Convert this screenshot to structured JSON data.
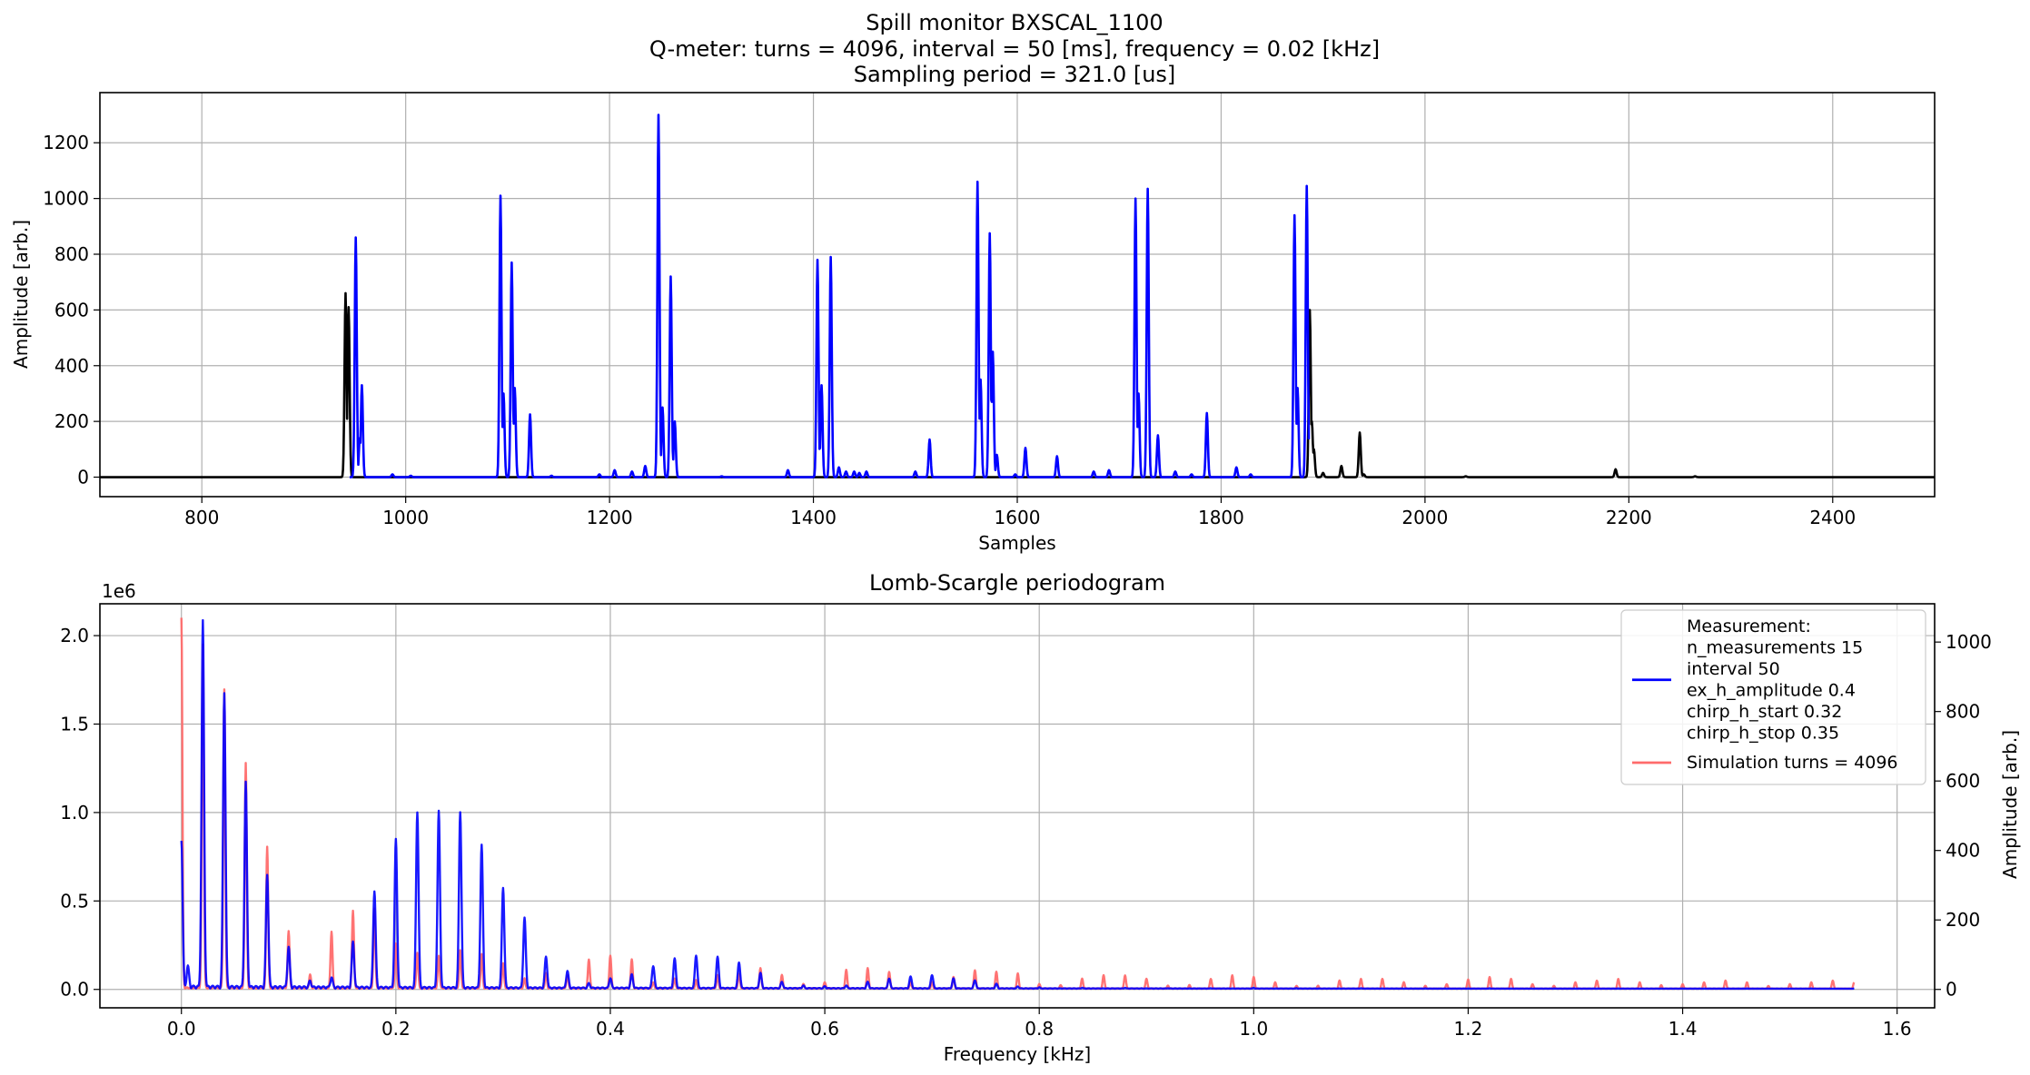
{
  "figure": {
    "title_lines": [
      "Spill monitor BXSCAL_1100",
      "Q-meter: turns = 4096, interval = 50 [ms], frequency = 0.02 [kHz]",
      "Sampling period = 321.0 [us]"
    ]
  },
  "chart_data": [
    {
      "type": "line",
      "title": "",
      "xlabel": "Samples",
      "ylabel": "Amplitude [arb.]",
      "xlim": [
        700,
        2500
      ],
      "ylim": [
        -70,
        1380
      ],
      "xticks": [
        800,
        1000,
        1200,
        1400,
        1600,
        1800,
        2000,
        2200,
        2400
      ],
      "yticks": [
        0,
        200,
        400,
        600,
        800,
        1000,
        1200
      ],
      "grid": true,
      "colors": {
        "measurement": "#0000ff",
        "background": "#000000"
      },
      "series": [
        {
          "key": "background",
          "color": "#000000",
          "baseline": 0,
          "x_range": [
            700,
            2500
          ],
          "peaks": [
            [
              941,
              660
            ],
            [
              944,
              610
            ],
            [
              1887,
              600
            ],
            [
              1889,
              200
            ],
            [
              1891,
              100
            ],
            [
              1900,
              15
            ],
            [
              1918,
              40
            ],
            [
              1936,
              160
            ],
            [
              1940,
              10
            ],
            [
              2040,
              3
            ],
            [
              2187,
              28
            ],
            [
              2265,
              3
            ]
          ]
        },
        {
          "key": "measurement",
          "color": "#0000ff",
          "baseline": 0,
          "x_range": [
            945,
            1886
          ],
          "peaks": [
            [
              951,
              860
            ],
            [
              955,
              140
            ],
            [
              957,
              330
            ],
            [
              987,
              10
            ],
            [
              1005,
              5
            ],
            [
              1093,
              1010
            ],
            [
              1096,
              300
            ],
            [
              1104,
              770
            ],
            [
              1107,
              320
            ],
            [
              1122,
              225
            ],
            [
              1143,
              5
            ],
            [
              1190,
              10
            ],
            [
              1205,
              25
            ],
            [
              1222,
              20
            ],
            [
              1235,
              40
            ],
            [
              1248,
              1300
            ],
            [
              1252,
              250
            ],
            [
              1260,
              720
            ],
            [
              1264,
              200
            ],
            [
              1310,
              3
            ],
            [
              1375,
              25
            ],
            [
              1404,
              780
            ],
            [
              1408,
              330
            ],
            [
              1417,
              790
            ],
            [
              1425,
              35
            ],
            [
              1432,
              20
            ],
            [
              1440,
              20
            ],
            [
              1445,
              15
            ],
            [
              1452,
              20
            ],
            [
              1500,
              20
            ],
            [
              1514,
              135
            ],
            [
              1561,
              1060
            ],
            [
              1564,
              350
            ],
            [
              1573,
              875
            ],
            [
              1576,
              450
            ],
            [
              1580,
              80
            ],
            [
              1598,
              10
            ],
            [
              1608,
              105
            ],
            [
              1639,
              75
            ],
            [
              1675,
              20
            ],
            [
              1690,
              25
            ],
            [
              1716,
              1000
            ],
            [
              1719,
              300
            ],
            [
              1728,
              1035
            ],
            [
              1738,
              150
            ],
            [
              1755,
              20
            ],
            [
              1771,
              10
            ],
            [
              1786,
              230
            ],
            [
              1815,
              35
            ],
            [
              1829,
              10
            ],
            [
              1872,
              940
            ],
            [
              1875,
              320
            ],
            [
              1884,
              1045
            ]
          ]
        }
      ]
    },
    {
      "type": "line",
      "title": "Lomb-Scargle periodogram",
      "xlabel": "Frequency [kHz]",
      "ylabel": "",
      "y2label": "Amplitude [arb.]",
      "y_offset_text": "1e6",
      "xlim": [
        -0.076,
        1.635
      ],
      "ylim": [
        -104000.0,
        2180000.0
      ],
      "y2lim": [
        -52.96,
        1110.2
      ],
      "xticks": [
        0.0,
        0.2,
        0.4,
        0.6,
        0.8,
        1.0,
        1.2,
        1.4,
        1.6
      ],
      "xtick_labels": [
        "0.0",
        "0.2",
        "0.4",
        "0.6",
        "0.8",
        "1.0",
        "1.2",
        "1.4",
        "1.6"
      ],
      "yticks": [
        0,
        500000.0,
        1000000.0,
        1500000.0,
        2000000.0
      ],
      "ytick_labels": [
        "0.0",
        "0.5",
        "1.0",
        "1.5",
        "2.0"
      ],
      "y2ticks": [
        0,
        200,
        400,
        600,
        800,
        1000
      ],
      "grid": true,
      "legend_position": "top-right",
      "legend": [
        {
          "color": "#0000ff",
          "lines": [
            "Measurement:",
            "n_measurements 15",
            "interval 50",
            "ex_h_amplitude 0.4",
            "chirp_h_start 0.32",
            "chirp_h_stop 0.35"
          ]
        },
        {
          "color": "#ff6b6b",
          "lines": [
            "Simulation turns = 4096"
          ]
        }
      ],
      "series": [
        {
          "key": "simulation",
          "name": "Simulation turns = 4096",
          "axis": "right",
          "color": "#ff6b6b",
          "x_range": [
            0,
            1.56
          ],
          "peaks": [
            [
              0.0,
              1070
            ],
            [
              0.02,
              990
            ],
            [
              0.04,
              860
            ],
            [
              0.06,
              650
            ],
            [
              0.08,
              410
            ],
            [
              0.1,
              165
            ],
            [
              0.12,
              40
            ],
            [
              0.14,
              165
            ],
            [
              0.16,
              225
            ],
            [
              0.18,
              230
            ],
            [
              0.2,
              130
            ],
            [
              0.22,
              105
            ],
            [
              0.24,
              95
            ],
            [
              0.26,
              110
            ],
            [
              0.28,
              100
            ],
            [
              0.3,
              75
            ],
            [
              0.32,
              30
            ],
            [
              0.34,
              45
            ],
            [
              0.36,
              40
            ],
            [
              0.38,
              85
            ],
            [
              0.4,
              95
            ],
            [
              0.42,
              85
            ],
            [
              0.44,
              20
            ],
            [
              0.46,
              30
            ],
            [
              0.48,
              25
            ],
            [
              0.5,
              40
            ],
            [
              0.52,
              45
            ],
            [
              0.54,
              60
            ],
            [
              0.56,
              40
            ],
            [
              0.58,
              15
            ],
            [
              0.6,
              20
            ],
            [
              0.62,
              55
            ],
            [
              0.64,
              60
            ],
            [
              0.66,
              50
            ],
            [
              0.68,
              20
            ],
            [
              0.7,
              20
            ],
            [
              0.72,
              35
            ],
            [
              0.74,
              55
            ],
            [
              0.76,
              50
            ],
            [
              0.78,
              45
            ],
            [
              0.8,
              15
            ],
            [
              0.82,
              12
            ],
            [
              0.84,
              30
            ],
            [
              0.86,
              40
            ],
            [
              0.88,
              40
            ],
            [
              0.9,
              30
            ],
            [
              0.92,
              10
            ],
            [
              0.94,
              12
            ],
            [
              0.96,
              30
            ],
            [
              0.98,
              40
            ],
            [
              1.0,
              35
            ],
            [
              1.02,
              20
            ],
            [
              1.04,
              10
            ],
            [
              1.06,
              10
            ],
            [
              1.08,
              25
            ],
            [
              1.1,
              30
            ],
            [
              1.12,
              30
            ],
            [
              1.14,
              20
            ],
            [
              1.16,
              10
            ],
            [
              1.18,
              15
            ],
            [
              1.2,
              28
            ],
            [
              1.22,
              35
            ],
            [
              1.24,
              30
            ],
            [
              1.26,
              15
            ],
            [
              1.28,
              10
            ],
            [
              1.3,
              20
            ],
            [
              1.32,
              25
            ],
            [
              1.34,
              30
            ],
            [
              1.36,
              20
            ],
            [
              1.38,
              12
            ],
            [
              1.4,
              15
            ],
            [
              1.42,
              20
            ],
            [
              1.44,
              25
            ],
            [
              1.46,
              20
            ],
            [
              1.48,
              10
            ],
            [
              1.5,
              15
            ],
            [
              1.52,
              20
            ],
            [
              1.54,
              25
            ],
            [
              1.56,
              20
            ]
          ]
        },
        {
          "key": "measurement",
          "name": "Measurement",
          "axis": "left",
          "color": "#0000ff",
          "x_range": [
            0,
            1.56
          ],
          "peaks": [
            [
              0.0,
              840000
            ],
            [
              0.006,
              120000
            ],
            [
              0.02,
              2070000
            ],
            [
              0.04,
              1670000
            ],
            [
              0.06,
              1160000
            ],
            [
              0.08,
              640000
            ],
            [
              0.1,
              230000
            ],
            [
              0.12,
              40000
            ],
            [
              0.14,
              60000
            ],
            [
              0.16,
              260000
            ],
            [
              0.18,
              550000
            ],
            [
              0.2,
              840000
            ],
            [
              0.22,
              1000000
            ],
            [
              0.24,
              1000000
            ],
            [
              0.26,
              1000000
            ],
            [
              0.28,
              810000
            ],
            [
              0.3,
              570000
            ],
            [
              0.32,
              400000
            ],
            [
              0.34,
              180000
            ],
            [
              0.36,
              100000
            ],
            [
              0.38,
              30000
            ],
            [
              0.4,
              60000
            ],
            [
              0.42,
              80000
            ],
            [
              0.44,
              130000
            ],
            [
              0.46,
              170000
            ],
            [
              0.48,
              190000
            ],
            [
              0.5,
              180000
            ],
            [
              0.52,
              150000
            ],
            [
              0.54,
              90000
            ],
            [
              0.56,
              40000
            ],
            [
              0.58,
              20000
            ],
            [
              0.6,
              15000
            ],
            [
              0.62,
              20000
            ],
            [
              0.64,
              40000
            ],
            [
              0.66,
              60000
            ],
            [
              0.68,
              70000
            ],
            [
              0.7,
              80000
            ],
            [
              0.72,
              60000
            ],
            [
              0.74,
              50000
            ],
            [
              0.76,
              30000
            ],
            [
              0.78,
              15000
            ],
            [
              0.8,
              10000
            ],
            [
              0.84,
              8000
            ],
            [
              0.88,
              8000
            ],
            [
              0.92,
              6000
            ],
            [
              0.96,
              6000
            ],
            [
              1.0,
              8000
            ],
            [
              1.04,
              6000
            ],
            [
              1.1,
              6000
            ],
            [
              1.16,
              5000
            ],
            [
              1.22,
              6000
            ],
            [
              1.28,
              5000
            ],
            [
              1.34,
              5000
            ],
            [
              1.4,
              5000
            ],
            [
              1.46,
              5000
            ],
            [
              1.52,
              5000
            ],
            [
              1.56,
              5000
            ]
          ]
        }
      ]
    }
  ]
}
